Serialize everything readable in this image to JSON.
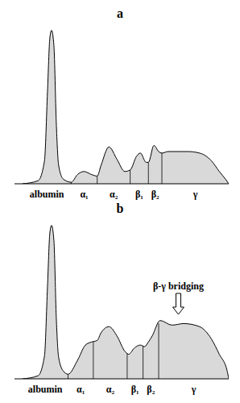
{
  "chart_data": [
    {
      "type": "area",
      "title": "a",
      "color": "#d9d9d9",
      "xlim": [
        0,
        100
      ],
      "ylim": [
        0,
        104
      ],
      "tick_labels": "x",
      "x": [
        3.7,
        11.0,
        14.0,
        15.4,
        16.5,
        17.3,
        18.4,
        19.5,
        20.6,
        22.8,
        26.5,
        29.4,
        32.4,
        36.0,
        38.6,
        40.4,
        44.1,
        47.8,
        51.5,
        54.0,
        57.0,
        58.8,
        61.4,
        62.5,
        65.1,
        67.3,
        68.8,
        71.7,
        80.9,
        86.4,
        91.9,
        95.6,
        98.5,
        100
      ],
      "values": [
        0,
        2,
        15,
        60,
        95,
        100,
        90,
        40,
        12,
        3,
        1,
        6,
        8,
        6,
        5,
        12,
        24,
        16,
        8,
        9,
        18,
        20,
        14,
        14,
        25,
        21,
        20,
        21,
        21,
        20,
        15,
        8,
        3,
        0
      ],
      "segments": [
        {
          "label": "albumin",
          "start": 3.7,
          "end": 26.5
        },
        {
          "label": "α₁",
          "start": 26.5,
          "end": 38.6
        },
        {
          "label": "α₂",
          "start": 38.6,
          "end": 54.0
        },
        {
          "label": "β₁",
          "start": 54.0,
          "end": 62.5
        },
        {
          "label": "β₂",
          "start": 62.5,
          "end": 68.8
        },
        {
          "label": "γ",
          "start": 68.8,
          "end": 100
        }
      ]
    },
    {
      "type": "area",
      "title": "b",
      "color": "#d9d9d9",
      "xlim": [
        0,
        100
      ],
      "ylim": [
        0,
        104
      ],
      "tick_labels": "x",
      "x": [
        3.7,
        11.0,
        14.0,
        15.4,
        16.5,
        17.3,
        18.4,
        19.5,
        20.6,
        22.8,
        25.0,
        29.4,
        33.1,
        36.0,
        38.6,
        40.4,
        44.1,
        47.8,
        51.5,
        53.3,
        55.9,
        58.8,
        60.7,
        62.5,
        64.3,
        68.0,
        73.5,
        79.0,
        86.4,
        91.9,
        95.6,
        99.3,
        100
      ],
      "values": [
        0,
        2,
        15,
        60,
        95,
        100,
        90,
        40,
        14,
        5,
        3,
        12,
        22,
        24,
        25,
        30,
        34,
        28,
        18,
        16,
        20,
        22,
        21,
        24,
        28,
        38,
        35,
        36,
        34,
        26,
        16,
        5,
        0
      ],
      "segments": [
        {
          "label": "albumin",
          "start": 3.7,
          "end": 25.0
        },
        {
          "label": "α₁",
          "start": 25.0,
          "end": 36.8
        },
        {
          "label": "α₂",
          "start": 36.8,
          "end": 52.6
        },
        {
          "label": "β₁",
          "start": 52.6,
          "end": 60.0
        },
        {
          "label": "β₂",
          "start": 60.0,
          "end": 67.3
        },
        {
          "label": "γ",
          "start": 67.3,
          "end": 100
        }
      ],
      "annotations": [
        {
          "text": "β-γ bridging",
          "x": 76.5,
          "y": 42
        }
      ]
    }
  ]
}
